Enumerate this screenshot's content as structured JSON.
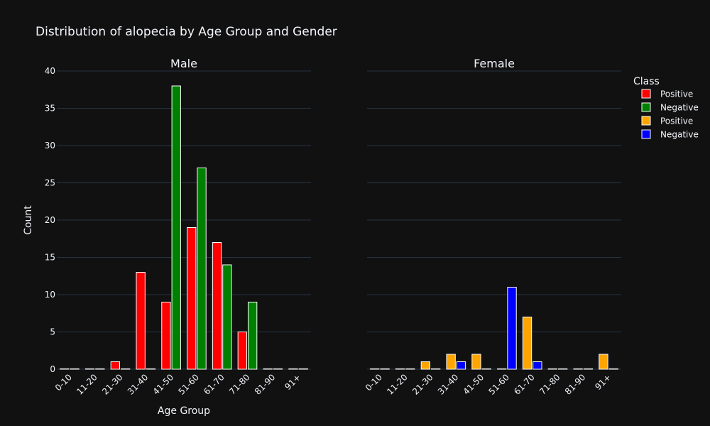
{
  "chart_data": {
    "type": "bar",
    "title": "Distribution of alopecia by Age Group and Gender",
    "xlabel": "Age Group",
    "ylabel": "Count",
    "ylim": [
      0,
      40
    ],
    "yticks": [
      0,
      5,
      10,
      15,
      20,
      25,
      30,
      35,
      40
    ],
    "categories": [
      "0-10",
      "11-20",
      "21-30",
      "31-40",
      "41-50",
      "51-60",
      "61-70",
      "71-80",
      "81-90",
      "91+"
    ],
    "grid": true,
    "legend": {
      "title": "Class",
      "placement": "top-right",
      "entries": [
        {
          "label": "Positive",
          "color": "#ff0000"
        },
        {
          "label": "Negative",
          "color": "#008000"
        },
        {
          "label": "Positive",
          "color": "#ffa500"
        },
        {
          "label": "Negative",
          "color": "#0000ff"
        }
      ]
    },
    "panels": [
      {
        "title": "Male",
        "series": [
          {
            "class": "Positive",
            "color": "#ff0000",
            "values": [
              0,
              0,
              1,
              13,
              9,
              19,
              17,
              5,
              0,
              0
            ]
          },
          {
            "class": "Negative",
            "color": "#008000",
            "values": [
              0,
              0,
              0,
              0,
              38,
              27,
              14,
              9,
              0,
              0
            ]
          }
        ]
      },
      {
        "title": "Female",
        "series": [
          {
            "class": "Positive",
            "color": "#ffa500",
            "values": [
              0,
              0,
              1,
              2,
              2,
              0,
              7,
              0,
              0,
              2
            ]
          },
          {
            "class": "Negative",
            "color": "#0000ff",
            "values": [
              0,
              0,
              0,
              1,
              0,
              11,
              1,
              0,
              0,
              0
            ]
          }
        ]
      }
    ]
  },
  "colors": {
    "background": "#111111",
    "grid": "#283442",
    "text": "#f2f5fa",
    "bar_outline": "#ffffff"
  }
}
